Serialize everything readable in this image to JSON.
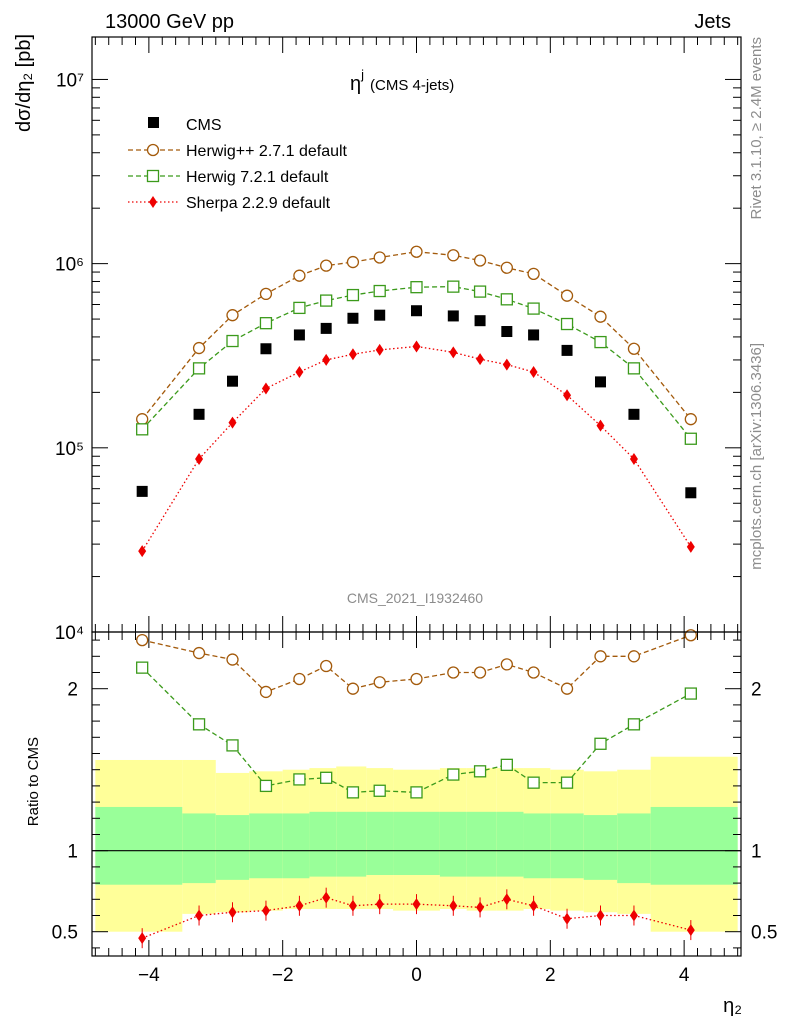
{
  "header": {
    "left": "13000 GeV pp",
    "right": "Jets"
  },
  "side_labels": {
    "top": "Rivet 3.1.10, ≥ 2.4M events",
    "bottom": "mcplots.cern.ch [arXiv:1306.3436]"
  },
  "panel_title": {
    "main": "η",
    "sup": "j",
    "suffix": "(CMS 4-jets)"
  },
  "watermark": "CMS_2021_I1932460",
  "colors": {
    "cms": "#000000",
    "herwigpp": "#a35a0b",
    "herwig7": "#3b9a1b",
    "sherpa": "#ee0000",
    "band_inner": "#99ff99",
    "band_outer": "#ffff99"
  },
  "chart_data": [
    {
      "type": "scatter",
      "yscale": "log",
      "ylabel": "dσ/dη₂ [pb]",
      "ylim": [
        10000,
        17000000
      ],
      "xlim": [
        -4.85,
        4.85
      ],
      "y_tick_labels": [
        "10⁴",
        "10⁵",
        "10⁶",
        "10⁷"
      ],
      "legend_position": "top-left",
      "x": [
        -4.1,
        -3.25,
        -2.75,
        -2.25,
        -1.75,
        -1.35,
        -0.95,
        -0.55,
        0.0,
        0.55,
        0.95,
        1.35,
        1.75,
        2.25,
        2.75,
        3.25,
        4.1
      ],
      "series": [
        {
          "name": "CMS",
          "marker": "square",
          "values": [
            58000,
            152000,
            230000,
            345000,
            410000,
            445000,
            505000,
            525000,
            555000,
            520000,
            490000,
            428000,
            410000,
            338000,
            228000,
            152000,
            57000
          ]
        },
        {
          "name": "Herwig++ 2.7.1 default",
          "marker": "circle-open",
          "values": [
            143000,
            348000,
            525000,
            685000,
            860000,
            975000,
            1020000,
            1080000,
            1160000,
            1110000,
            1040000,
            950000,
            880000,
            670000,
            515000,
            345000,
            143000
          ]
        },
        {
          "name": "Herwig 7.2.1 default",
          "marker": "square-open",
          "values": [
            126000,
            270000,
            380000,
            475000,
            575000,
            630000,
            675000,
            710000,
            745000,
            750000,
            705000,
            640000,
            570000,
            470000,
            375000,
            270000,
            112000
          ]
        },
        {
          "name": "Sherpa 2.2.9 default",
          "marker": "diamond",
          "values": [
            27500,
            87000,
            137000,
            210000,
            258000,
            300000,
            322000,
            340000,
            355000,
            330000,
            303000,
            283000,
            258000,
            193000,
            132000,
            87000,
            29000
          ]
        }
      ]
    },
    {
      "type": "scatter",
      "ylabel": "Ratio to CMS",
      "xlabel": "η₂",
      "ylim": [
        0.35,
        2.35
      ],
      "xlim": [
        -4.85,
        4.85
      ],
      "x_ticks": [
        -4,
        -2,
        0,
        2,
        4
      ],
      "x_tick_labels": [
        "−4",
        "−2",
        "0",
        "2",
        "4"
      ],
      "y_ticks": [
        0.5,
        1,
        2
      ],
      "y_tick_labels": [
        "0.5",
        "1",
        "2"
      ],
      "x": [
        -4.1,
        -3.25,
        -2.75,
        -2.25,
        -1.75,
        -1.35,
        -0.95,
        -0.55,
        0.0,
        0.55,
        0.95,
        1.35,
        1.75,
        2.25,
        2.75,
        3.25,
        4.1
      ],
      "series": [
        {
          "name": "Herwig++ 2.7.1 default",
          "values": [
            2.3,
            2.22,
            2.18,
            1.98,
            2.06,
            2.14,
            2.0,
            2.04,
            2.06,
            2.1,
            2.1,
            2.15,
            2.1,
            2.0,
            2.2,
            2.2,
            2.33
          ]
        },
        {
          "name": "Herwig 7.2.1 default",
          "values": [
            2.13,
            1.78,
            1.65,
            1.4,
            1.44,
            1.45,
            1.36,
            1.37,
            1.36,
            1.47,
            1.49,
            1.53,
            1.42,
            1.42,
            1.66,
            1.78,
            1.97
          ]
        },
        {
          "name": "Sherpa 2.2.9 default",
          "values": [
            0.46,
            0.6,
            0.62,
            0.63,
            0.66,
            0.71,
            0.66,
            0.67,
            0.67,
            0.66,
            0.65,
            0.7,
            0.66,
            0.58,
            0.6,
            0.6,
            0.51
          ]
        }
      ],
      "band": {
        "edges": [
          -4.8,
          -3.5,
          -3.0,
          -2.5,
          -2.0,
          -1.6,
          -1.2,
          -0.75,
          -0.35,
          0.35,
          0.75,
          1.2,
          1.6,
          2.0,
          2.5,
          3.0,
          3.5,
          4.8
        ],
        "inner_low": [
          0.79,
          0.8,
          0.82,
          0.83,
          0.83,
          0.84,
          0.84,
          0.85,
          0.85,
          0.84,
          0.84,
          0.84,
          0.83,
          0.83,
          0.82,
          0.8,
          0.79
        ],
        "inner_high": [
          1.27,
          1.23,
          1.22,
          1.23,
          1.23,
          1.24,
          1.24,
          1.24,
          1.24,
          1.24,
          1.24,
          1.24,
          1.23,
          1.23,
          1.22,
          1.23,
          1.27
        ],
        "outer_low": [
          0.5,
          0.61,
          0.62,
          0.63,
          0.64,
          0.64,
          0.64,
          0.64,
          0.63,
          0.64,
          0.63,
          0.63,
          0.64,
          0.63,
          0.62,
          0.61,
          0.5
        ],
        "outer_high": [
          1.56,
          1.56,
          1.48,
          1.49,
          1.5,
          1.51,
          1.52,
          1.51,
          1.5,
          1.51,
          1.51,
          1.51,
          1.51,
          1.5,
          1.49,
          1.5,
          1.58
        ]
      }
    }
  ]
}
